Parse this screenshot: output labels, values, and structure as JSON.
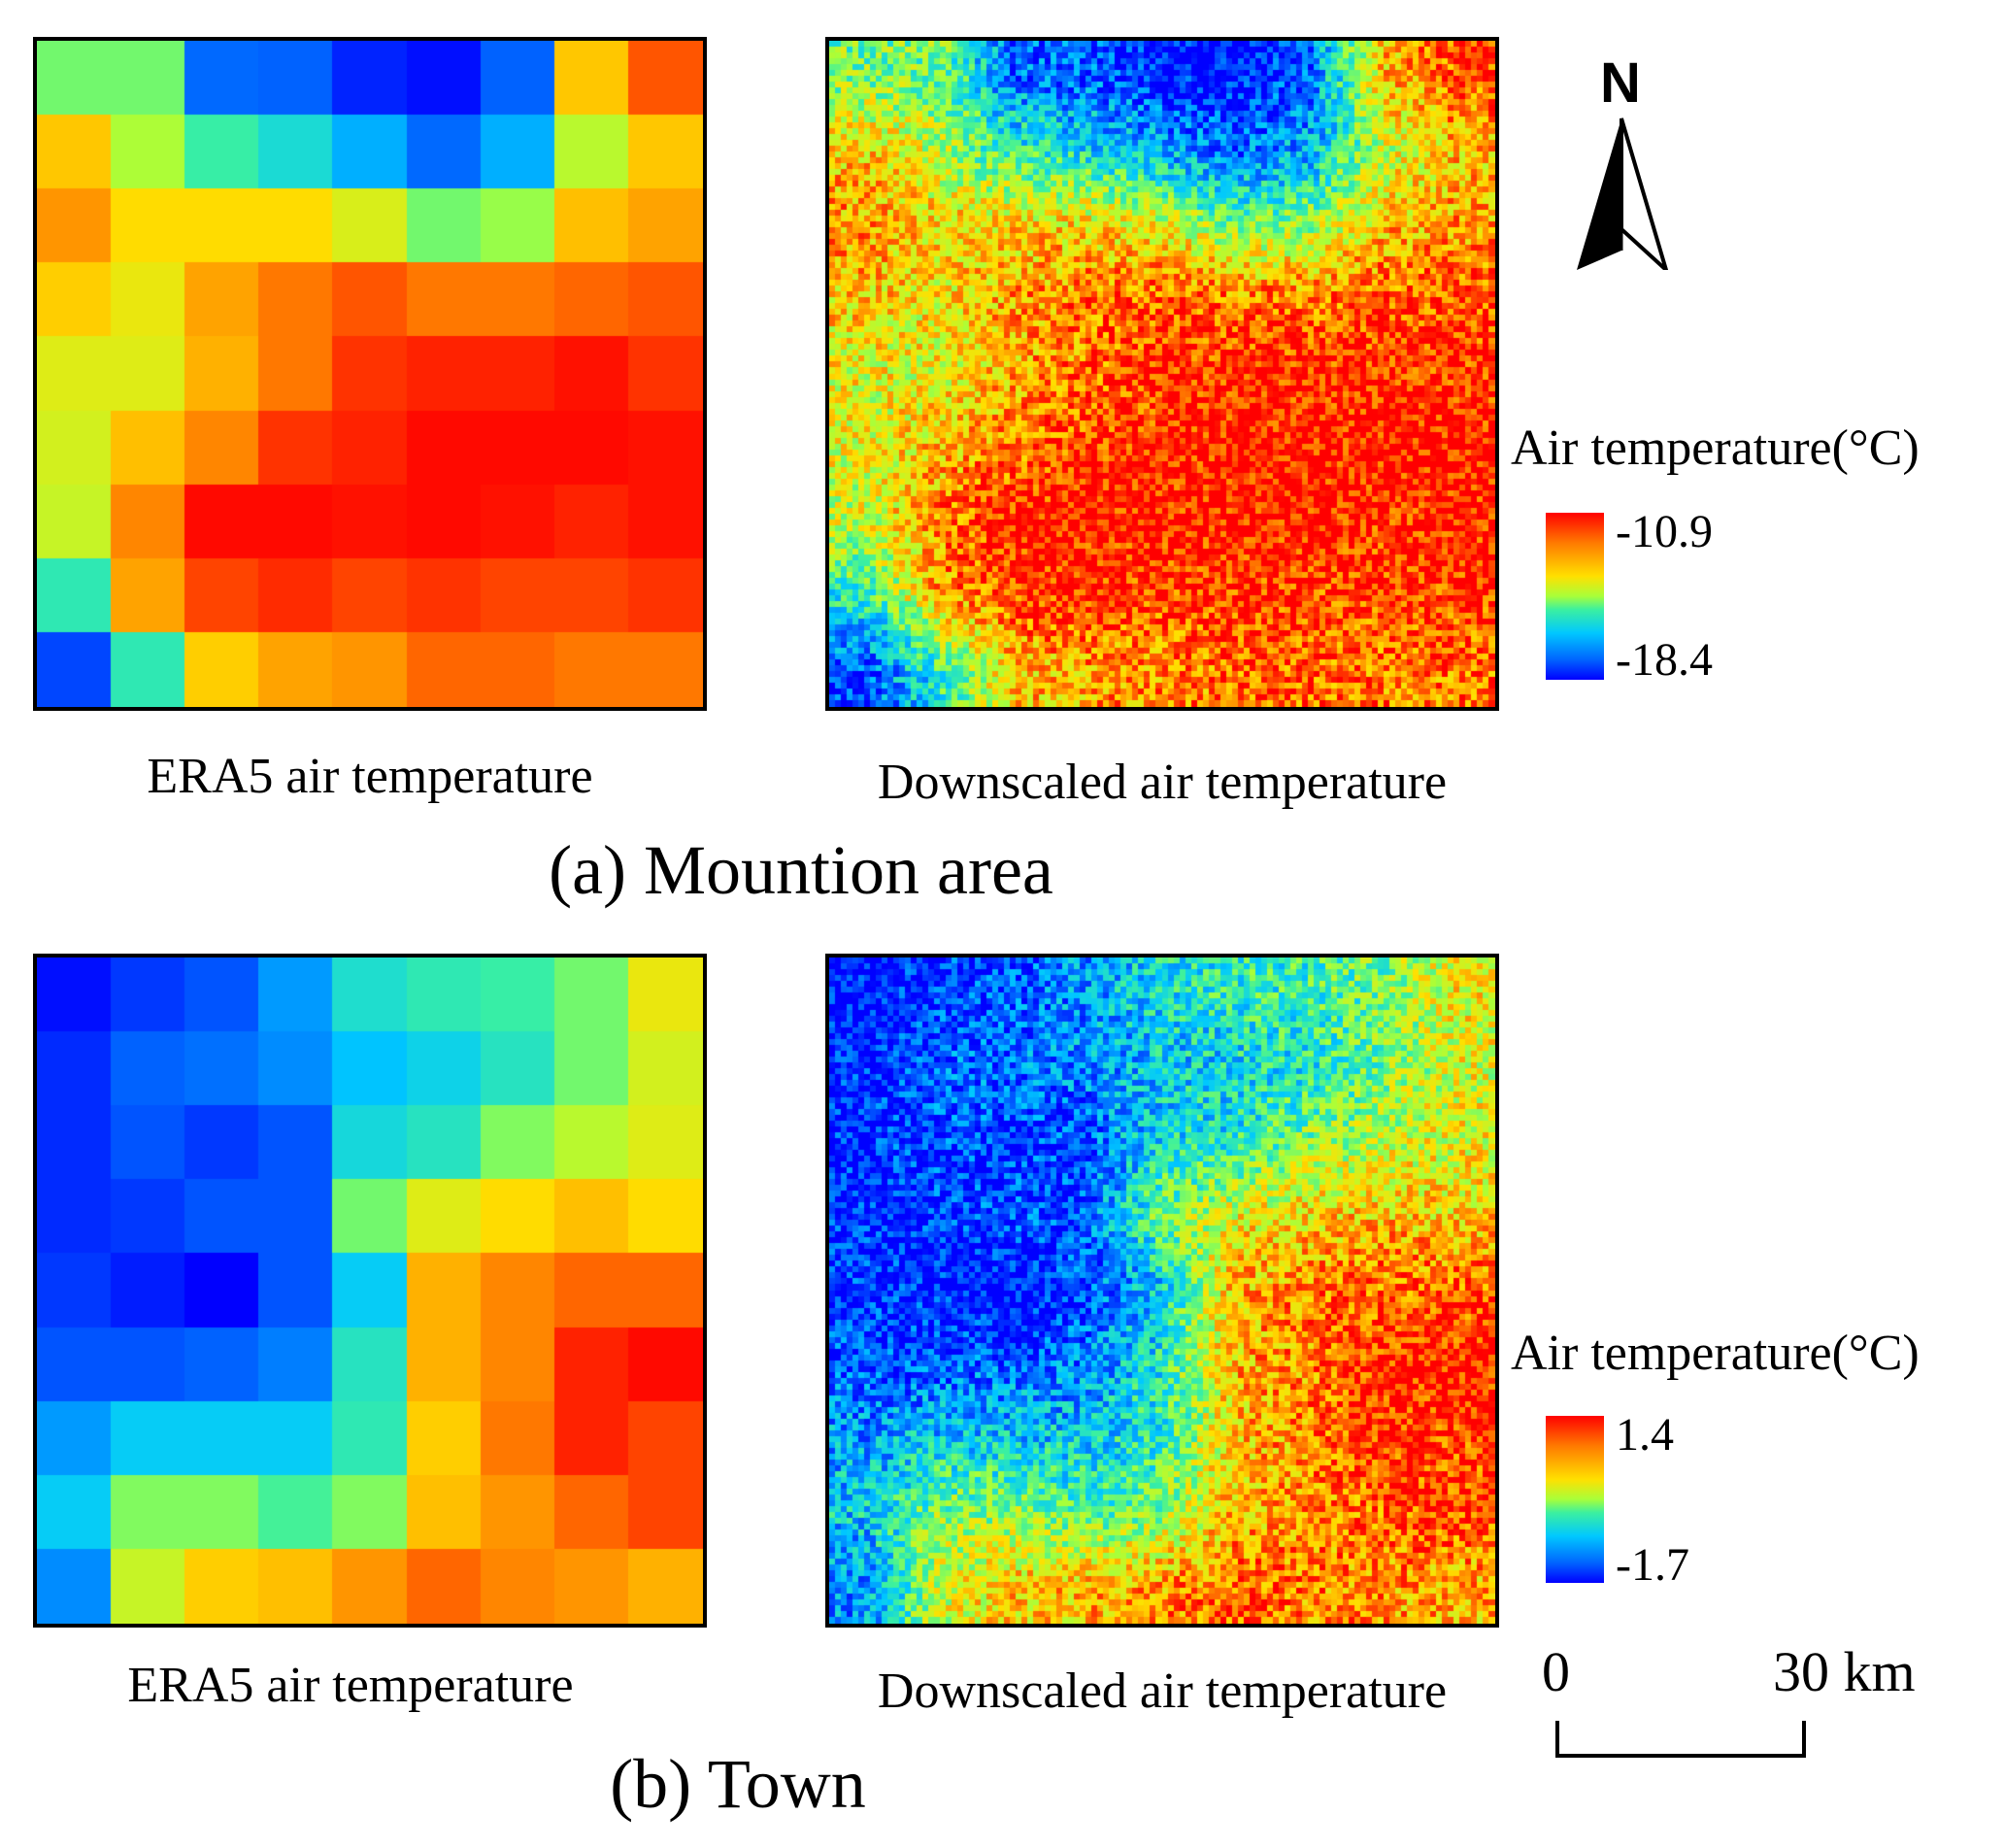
{
  "panels": {
    "a": {
      "subtitle": "(a) Mountion area",
      "era5_caption": "ERA5 air temperature",
      "downscaled_caption": "Downscaled air temperature",
      "legend": {
        "title": "Air temperature(°C)",
        "max_label": "-10.9",
        "min_label": "-18.4"
      },
      "era5_grid": [
        [
          0.5,
          0.5,
          0.15,
          0.14,
          0.05,
          0.02,
          0.14,
          0.75,
          0.9
        ],
        [
          0.75,
          0.58,
          0.42,
          0.35,
          0.25,
          0.15,
          0.25,
          0.6,
          0.75
        ],
        [
          0.82,
          0.72,
          0.72,
          0.72,
          0.65,
          0.5,
          0.55,
          0.76,
          0.8
        ],
        [
          0.74,
          0.68,
          0.8,
          0.86,
          0.9,
          0.86,
          0.86,
          0.88,
          0.9
        ],
        [
          0.66,
          0.66,
          0.78,
          0.86,
          0.94,
          0.96,
          0.96,
          0.98,
          0.94
        ],
        [
          0.64,
          0.76,
          0.84,
          0.94,
          0.96,
          0.99,
          0.99,
          0.99,
          0.98
        ],
        [
          0.62,
          0.84,
          0.99,
          0.99,
          0.98,
          0.99,
          0.98,
          0.96,
          0.98
        ],
        [
          0.4,
          0.8,
          0.92,
          0.95,
          0.92,
          0.94,
          0.92,
          0.92,
          0.94
        ],
        [
          0.1,
          0.4,
          0.74,
          0.8,
          0.82,
          0.88,
          0.88,
          0.86,
          0.86
        ]
      ]
    },
    "b": {
      "subtitle": "(b) Town",
      "era5_caption": "ERA5 air temperature",
      "downscaled_caption": "Downscaled air temperature",
      "legend": {
        "title": "Air temperature(°C)",
        "max_label": "1.4",
        "min_label": "-1.7"
      },
      "era5_grid": [
        [
          0.02,
          0.08,
          0.12,
          0.22,
          0.36,
          0.4,
          0.42,
          0.5,
          0.68
        ],
        [
          0.06,
          0.14,
          0.16,
          0.2,
          0.28,
          0.32,
          0.38,
          0.5,
          0.64
        ],
        [
          0.06,
          0.12,
          0.08,
          0.12,
          0.34,
          0.38,
          0.52,
          0.6,
          0.66
        ],
        [
          0.06,
          0.08,
          0.12,
          0.12,
          0.5,
          0.66,
          0.72,
          0.76,
          0.72
        ],
        [
          0.08,
          0.04,
          0.0,
          0.12,
          0.3,
          0.78,
          0.84,
          0.88,
          0.88
        ],
        [
          0.12,
          0.12,
          0.14,
          0.18,
          0.38,
          0.78,
          0.84,
          0.96,
          0.99
        ],
        [
          0.22,
          0.3,
          0.3,
          0.3,
          0.4,
          0.74,
          0.86,
          0.96,
          0.92
        ],
        [
          0.3,
          0.52,
          0.52,
          0.44,
          0.52,
          0.76,
          0.82,
          0.88,
          0.92
        ],
        [
          0.2,
          0.62,
          0.74,
          0.76,
          0.82,
          0.88,
          0.84,
          0.82,
          0.78
        ]
      ]
    }
  },
  "north_arrow": {
    "label": "N"
  },
  "scale_bar": {
    "start_label": "0",
    "end_label": "30 km"
  },
  "colormap": [
    "#0000ff",
    "#0064ff",
    "#00c8ff",
    "#3bf0a0",
    "#a8ff3a",
    "#ffe000",
    "#ff7a00",
    "#ff0000"
  ]
}
